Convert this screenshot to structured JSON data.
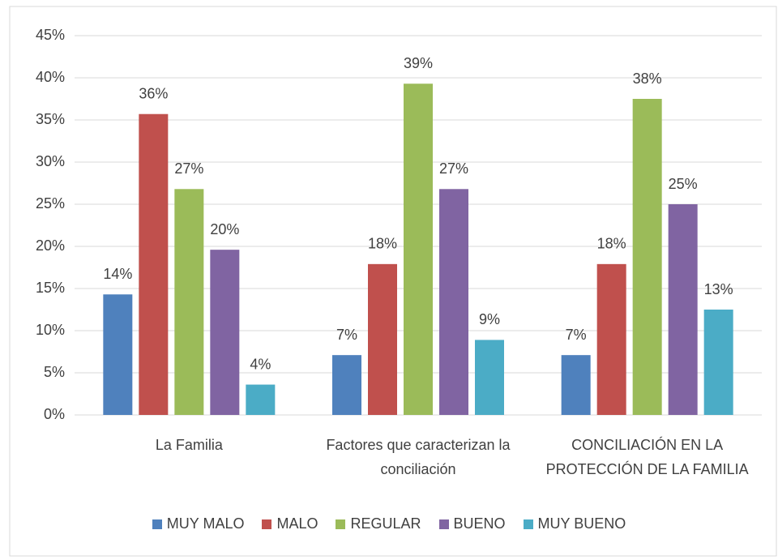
{
  "chart_data": {
    "type": "bar",
    "categories": [
      "La Familia",
      "Factores que caracterizan la conciliación",
      "CONCILIACIÓN EN LA PROTECCIÓN DE LA FAMILIA"
    ],
    "series": [
      {
        "name": "MUY MALO",
        "color": "#4f81bd",
        "values": [
          14.3,
          7.1,
          7.1
        ],
        "value_labels": [
          "14%",
          "7%",
          "7%"
        ]
      },
      {
        "name": "MALO",
        "color": "#c0504d",
        "values": [
          35.7,
          17.9,
          17.9
        ],
        "value_labels": [
          "36%",
          "18%",
          "18%"
        ]
      },
      {
        "name": "REGULAR",
        "color": "#9bbb59",
        "values": [
          26.8,
          39.3,
          37.5
        ],
        "value_labels": [
          "27%",
          "39%",
          "38%"
        ]
      },
      {
        "name": "BUENO",
        "color": "#8064a2",
        "values": [
          19.6,
          26.8,
          25.0
        ],
        "value_labels": [
          "20%",
          "27%",
          "25%"
        ]
      },
      {
        "name": "MUY BUENO",
        "color": "#4bacc6",
        "values": [
          3.6,
          8.9,
          12.5
        ],
        "value_labels": [
          "4%",
          "9%",
          "13%"
        ]
      }
    ],
    "ylim": [
      0,
      45
    ],
    "yticks": [
      {
        "value": 0,
        "label": "0%"
      },
      {
        "value": 5,
        "label": "5%"
      },
      {
        "value": 10,
        "label": "10%"
      },
      {
        "value": 15,
        "label": "15%"
      },
      {
        "value": 20,
        "label": "20%"
      },
      {
        "value": 25,
        "label": "25%"
      },
      {
        "value": 30,
        "label": "30%"
      },
      {
        "value": 35,
        "label": "35%"
      },
      {
        "value": 40,
        "label": "40%"
      },
      {
        "value": 45,
        "label": "45%"
      }
    ],
    "grid": true,
    "legend": "bottom"
  }
}
